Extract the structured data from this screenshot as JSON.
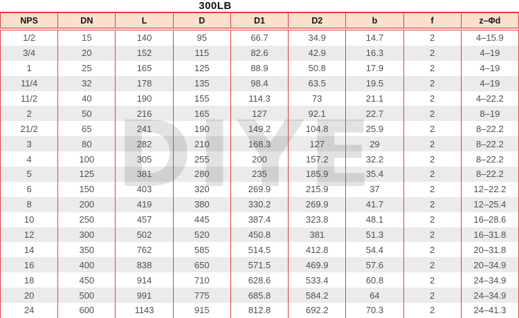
{
  "title": "300LB",
  "watermark": "DIYE",
  "colors": {
    "header_bg": "#fcdfcc",
    "grid_red": "#e03c3e",
    "alt_row_gray": "#ececec",
    "cell_text": "#4f4f4f",
    "header_text": "#151515",
    "watermark_gray": "#e2e2e2"
  },
  "chart_data": {
    "type": "table",
    "title": "300LB",
    "columns": [
      "NPS",
      "DN",
      "L",
      "D",
      "D1",
      "D2",
      "b",
      "f",
      "z–Φd"
    ],
    "rows": [
      [
        "1/2",
        "15",
        "140",
        "95",
        "66.7",
        "34.9",
        "14.7",
        "2",
        "4–15.9"
      ],
      [
        "3/4",
        "20",
        "152",
        "115",
        "82.6",
        "42.9",
        "16.3",
        "2",
        "4–19"
      ],
      [
        "1",
        "25",
        "165",
        "125",
        "88.9",
        "50.8",
        "17.9",
        "2",
        "4–19"
      ],
      [
        "11/4",
        "32",
        "178",
        "135",
        "98.4",
        "63.5",
        "19.5",
        "2",
        "4–19"
      ],
      [
        "11/2",
        "40",
        "190",
        "155",
        "114.3",
        "73",
        "21.1",
        "2",
        "4–22.2"
      ],
      [
        "2",
        "50",
        "216",
        "165",
        "127",
        "92.1",
        "22.7",
        "2",
        "8–19"
      ],
      [
        "21/2",
        "65",
        "241",
        "190",
        "149.2",
        "104.8",
        "25.9",
        "2",
        "8–22.2"
      ],
      [
        "3",
        "80",
        "282",
        "210",
        "168.3",
        "127",
        "29",
        "2",
        "8–22.2"
      ],
      [
        "4",
        "100",
        "305",
        "255",
        "200",
        "157.2",
        "32.2",
        "2",
        "8–22.2"
      ],
      [
        "5",
        "125",
        "381",
        "280",
        "235",
        "185.9",
        "35.4",
        "2",
        "8–22.2"
      ],
      [
        "6",
        "150",
        "403",
        "320",
        "269.9",
        "215.9",
        "37",
        "2",
        "12–22.2"
      ],
      [
        "8",
        "200",
        "419",
        "380",
        "330.2",
        "269.9",
        "41.7",
        "2",
        "12–25.4"
      ],
      [
        "10",
        "250",
        "457",
        "445",
        "387.4",
        "323.8",
        "48.1",
        "2",
        "16–28.6"
      ],
      [
        "12",
        "300",
        "502",
        "520",
        "450.8",
        "381",
        "51.3",
        "2",
        "16–31.8"
      ],
      [
        "14",
        "350",
        "762",
        "585",
        "514.5",
        "412.8",
        "54.4",
        "2",
        "20–31.8"
      ],
      [
        "16",
        "400",
        "838",
        "650",
        "571.5",
        "469.9",
        "57.6",
        "2",
        "20–34.9"
      ],
      [
        "18",
        "450",
        "914",
        "710",
        "628.6",
        "533.4",
        "60.8",
        "2",
        "24–34.9"
      ],
      [
        "20",
        "500",
        "991",
        "775",
        "685.8",
        "584.2",
        "64",
        "2",
        "24–34.9"
      ],
      [
        "24",
        "600",
        "1143",
        "915",
        "812.8",
        "692.2",
        "70.3",
        "2",
        "24–41.3"
      ]
    ]
  }
}
